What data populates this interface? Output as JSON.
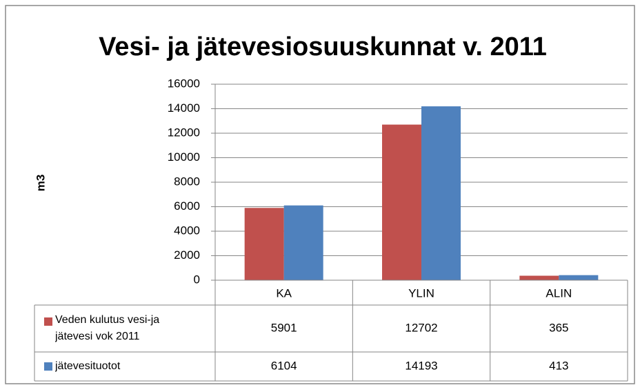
{
  "chart_data": {
    "type": "bar",
    "title": "Vesi- ja jätevesiosuuskunnat v. 2011",
    "y_label": "m3",
    "categories": [
      "KA",
      "YLIN",
      "ALIN"
    ],
    "series": [
      {
        "name": "Veden kulutus vesi-ja jätevesi vok 2011",
        "color": "#c0504d",
        "values": [
          5901,
          12702,
          365
        ]
      },
      {
        "name": "jätevesituotot",
        "color": "#4f81bd",
        "values": [
          6104,
          14193,
          413
        ]
      }
    ],
    "ylim": [
      0,
      16000
    ],
    "yticks": [
      0,
      2000,
      4000,
      6000,
      8000,
      10000,
      12000,
      14000,
      16000
    ],
    "grid": true,
    "data_table": true
  }
}
